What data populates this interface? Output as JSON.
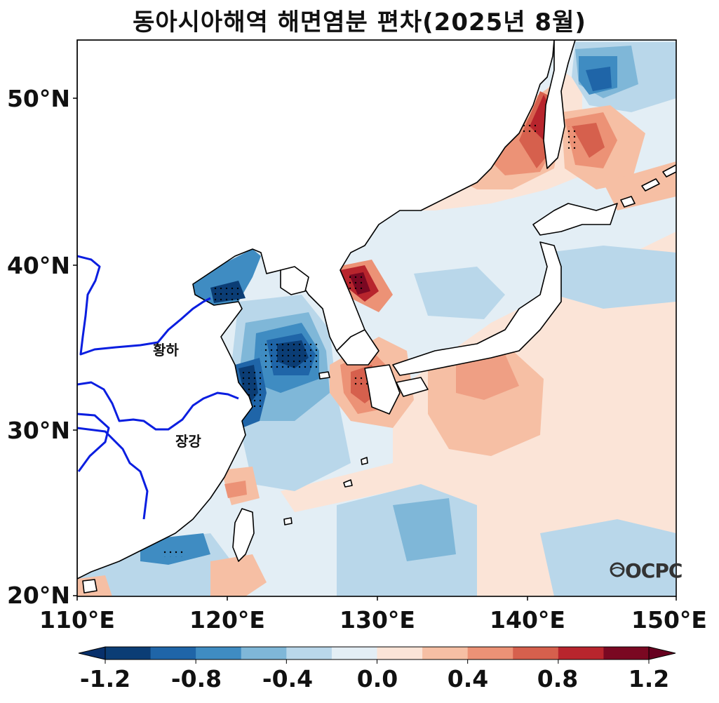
{
  "title": "동아시아해역 해면염분 편차(2025년 8월)",
  "lat_labels": [
    "50°N",
    "40°N",
    "30°N",
    "20°N"
  ],
  "lon_labels": [
    "110°E",
    "120°E",
    "130°E",
    "140°E",
    "150°E"
  ],
  "river_labels": {
    "yellow": "황하",
    "yangtze": "장강"
  },
  "logo_text": "OCPC",
  "colorbar": {
    "tick_labels": [
      "-1.2",
      "-0.8",
      "-0.4",
      "0.0",
      "0.4",
      "0.8",
      "1.2"
    ],
    "levels": [
      -1.2,
      -1.0,
      -0.8,
      -0.6,
      -0.4,
      -0.2,
      0.0,
      0.2,
      0.4,
      0.6,
      0.8,
      1.0,
      1.2
    ],
    "colors": [
      "#0b3d75",
      "#1f65a8",
      "#3f8cc2",
      "#7fb7d8",
      "#b9d7ea",
      "#e3eef5",
      "#fbe4d7",
      "#f6bfa4",
      "#ec9276",
      "#d6604d",
      "#b8252d",
      "#7a0822"
    ],
    "under_color": "#08306b",
    "over_color": "#67001f"
  },
  "map": {
    "lon_range": [
      110,
      150
    ],
    "lat_range": [
      20,
      53.5
    ]
  }
}
